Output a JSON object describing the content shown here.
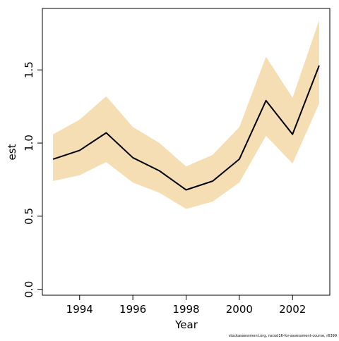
{
  "chart_data": {
    "type": "line",
    "title": "",
    "xlabel": "Year",
    "ylabel": "est",
    "xlim": [
      1992.6,
      2003.4
    ],
    "ylim": [
      -0.04,
      1.92
    ],
    "x_ticks": [
      1994,
      1996,
      1998,
      2000,
      2002
    ],
    "x_tick_labels": [
      "1994",
      "1996",
      "1998",
      "2000",
      "2002"
    ],
    "y_ticks": [
      0.0,
      0.5,
      1.0,
      1.5
    ],
    "y_tick_labels": [
      "0.0",
      "0.5",
      "1.0",
      "1.5"
    ],
    "grid": false,
    "legend": "none",
    "x": [
      1993,
      1994,
      1995,
      1996,
      1997,
      1998,
      1999,
      2000,
      2001,
      2002,
      2003
    ],
    "series": [
      {
        "values": [
          0.89,
          0.95,
          1.07,
          0.9,
          0.81,
          0.68,
          0.74,
          0.89,
          1.29,
          1.06,
          1.53
        ],
        "lower": [
          0.74,
          0.78,
          0.87,
          0.73,
          0.66,
          0.55,
          0.6,
          0.73,
          1.05,
          0.86,
          1.27
        ],
        "upper": [
          1.06,
          1.16,
          1.32,
          1.11,
          1.0,
          0.84,
          0.92,
          1.11,
          1.59,
          1.31,
          1.84
        ]
      }
    ],
    "colors": {
      "band": "#f5deb3",
      "line": "#000000"
    },
    "footer": "stockassessment.org, nscod16-for-assessment-course, r6399"
  }
}
